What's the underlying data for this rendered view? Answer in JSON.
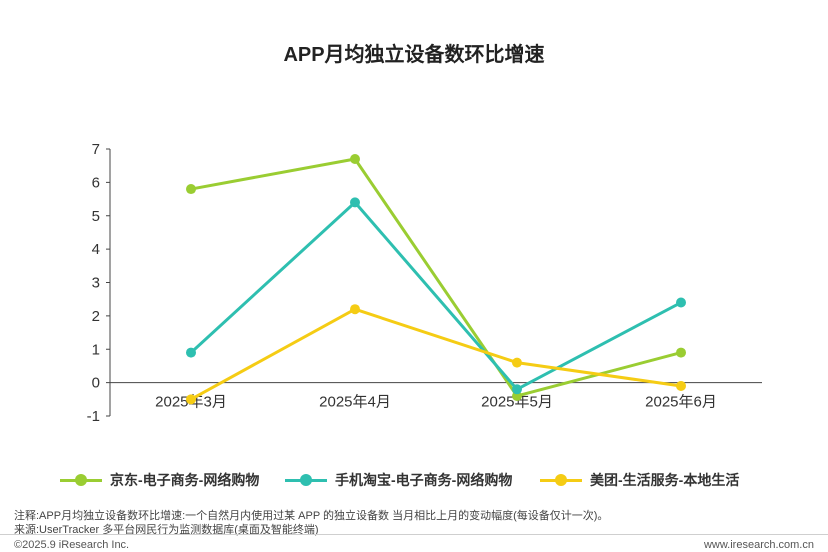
{
  "chart_data": {
    "type": "line",
    "title": "APP月均独立设备数环比增速",
    "categories": [
      "2025年3月",
      "2025年4月",
      "2025年5月",
      "2025年6月"
    ],
    "yticks": [
      -1,
      0,
      1,
      2,
      3,
      4,
      5,
      6,
      7
    ],
    "ylim": [
      -1,
      7
    ],
    "grid": false,
    "legend_position": "bottom",
    "series": [
      {
        "name": "京东-电子商务-网络购物",
        "color": "#9ACD32",
        "values": [
          5.8,
          6.7,
          -0.4,
          0.9
        ]
      },
      {
        "name": "手机淘宝-电子商务-网络购物",
        "color": "#2EBFB0",
        "values": [
          0.9,
          5.4,
          -0.2,
          2.4
        ]
      },
      {
        "name": "美团-生活服务-本地生活",
        "color": "#F5CC14",
        "values": [
          -0.5,
          2.2,
          0.6,
          -0.1
        ]
      }
    ]
  },
  "notes": {
    "note": "注释:APP月均独立设备数环比增速:一个自然月内使用过某 APP 的独立设备数 当月相比上月的变动幅度(每设备仅计一次)。",
    "source": "来源:UserTracker 多平台网民行为监测数据库(桌面及智能终端)"
  },
  "footer": {
    "copyright": "©2025.9 iResearch Inc.",
    "url": "www.iresearch.com.cn"
  }
}
